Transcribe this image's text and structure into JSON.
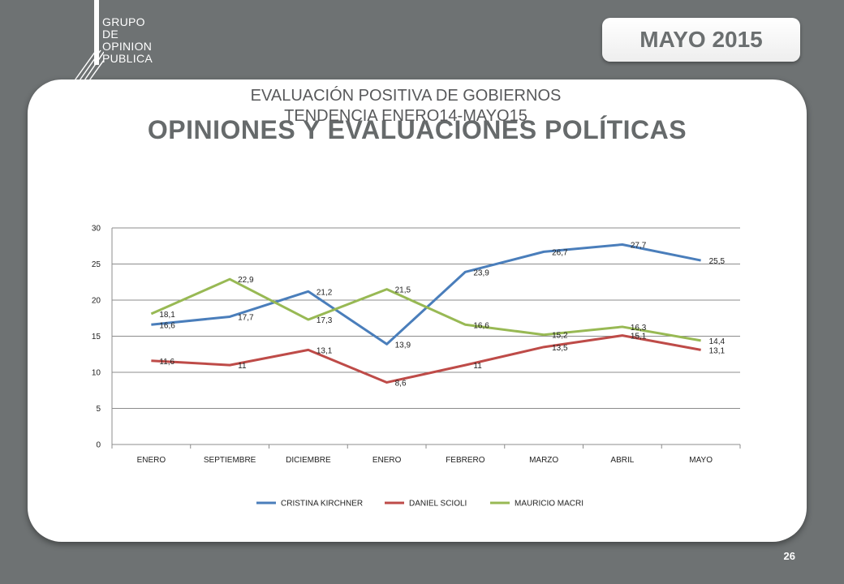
{
  "header": {
    "logo_lines": [
      "GRUPO",
      "DE",
      "OPINION",
      "PUBLICA"
    ],
    "date_label": "MAYO 2015"
  },
  "slide": {
    "title": "OPINIONES Y EVALUACIONES POLÍTICAS",
    "page_number": "26"
  },
  "chart_data": {
    "type": "line",
    "title_lines": [
      "EVALUACIÓN POSITIVA DE GOBIERNOS",
      "TENDENCIA ENERO14-MAYO15"
    ],
    "categories": [
      "ENERO",
      "SEPTIEMBRE",
      "DICIEMBRE",
      "ENERO",
      "FEBRERO",
      "MARZO",
      "ABRIL",
      "MAYO"
    ],
    "ylim": [
      0,
      30
    ],
    "yticks": [
      "0",
      "5",
      "10",
      "15",
      "20",
      "25",
      "30"
    ],
    "grid": true,
    "legend_position": "bottom",
    "series": [
      {
        "name": "CRISTINA KIRCHNER",
        "color": "#4a7ebb",
        "values": [
          16.6,
          17.7,
          21.2,
          13.9,
          23.9,
          26.7,
          27.7,
          25.5
        ],
        "labels": [
          "16,6",
          "17,7",
          "21,2",
          "13,9",
          "23,9",
          "26,7",
          "27,7",
          "25,5"
        ]
      },
      {
        "name": "DANIEL SCIOLI",
        "color": "#be4b48",
        "values": [
          11.6,
          11,
          13.1,
          8.6,
          11,
          13.5,
          15.1,
          13.1
        ],
        "labels": [
          "11,6",
          "11",
          "13,1",
          "8,6",
          "11",
          "13,5",
          "15,1",
          "13,1"
        ]
      },
      {
        "name": "MAURICIO MACRI",
        "color": "#98b954",
        "values": [
          18.1,
          22.9,
          17.3,
          21.5,
          16.6,
          15.2,
          16.3,
          14.4
        ],
        "labels": [
          "18,1",
          "22,9",
          "17,3",
          "21,5",
          "16,6",
          "15,2",
          "16,3",
          "14,4"
        ]
      }
    ]
  }
}
